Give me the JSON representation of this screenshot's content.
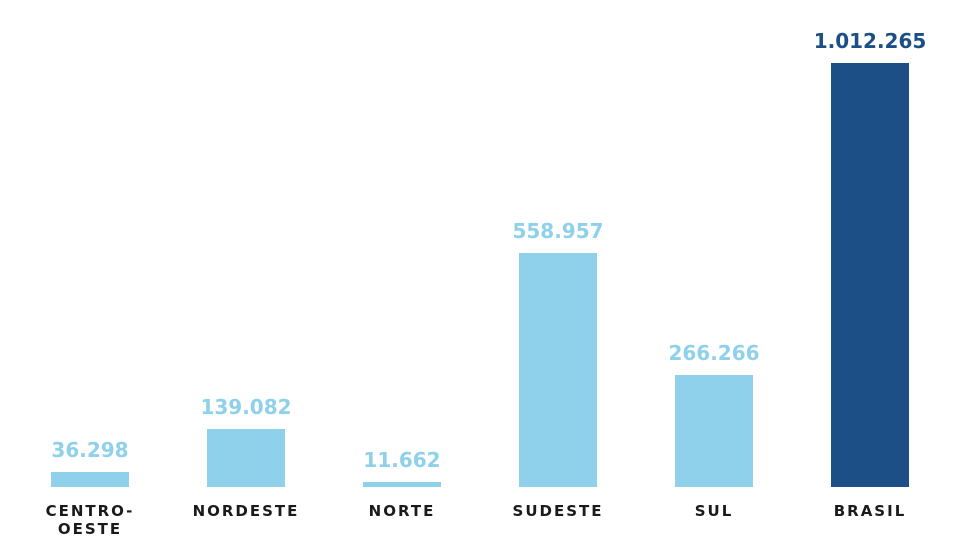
{
  "chart_data": {
    "type": "bar",
    "categories": [
      "CENTRO-OESTE",
      "NORDESTE",
      "NORTE",
      "SUDESTE",
      "SUL",
      "BRASIL"
    ],
    "values": [
      36298,
      139082,
      11662,
      558957,
      266266,
      1012265
    ],
    "value_labels": [
      "36.298",
      "139.082",
      "11.662",
      "558.957",
      "266.266",
      "1.012.265"
    ],
    "colors": [
      "#8fd0ea",
      "#8fd0ea",
      "#8fd0ea",
      "#8fd0ea",
      "#8fd0ea",
      "#1b4f85"
    ]
  }
}
